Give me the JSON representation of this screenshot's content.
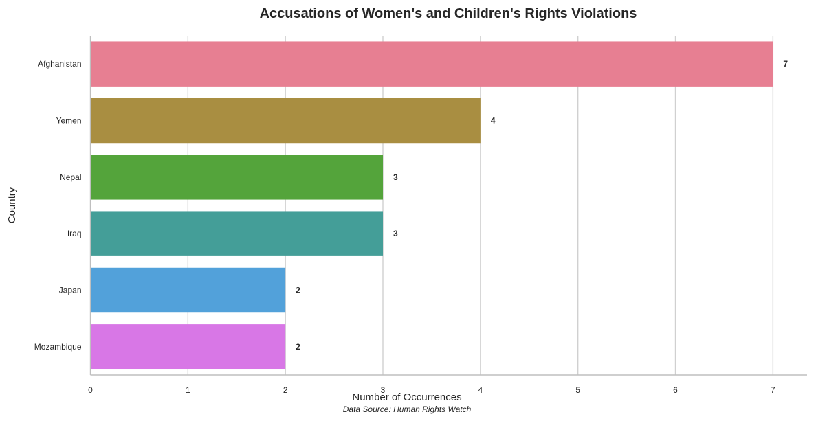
{
  "chart_data": {
    "type": "bar",
    "orientation": "horizontal",
    "title": "Accusations of Women's and Children's Rights Violations",
    "xlabel": "Number of Occurrences",
    "ylabel": "Country",
    "categories": [
      "Afghanistan",
      "Yemen",
      "Nepal",
      "Iraq",
      "Japan",
      "Mozambique"
    ],
    "values": [
      7,
      4,
      3,
      3,
      2,
      2
    ],
    "colors": [
      "#e77f92",
      "#a98e41",
      "#54a43b",
      "#449e98",
      "#52a1da",
      "#d877e6"
    ],
    "xticks": [
      0,
      1,
      2,
      3,
      4,
      5,
      6,
      7
    ],
    "xlim": [
      0,
      7.35
    ],
    "grid": "vertical",
    "data_labels": true,
    "source_note": "Data Source: Human Rights Watch"
  }
}
